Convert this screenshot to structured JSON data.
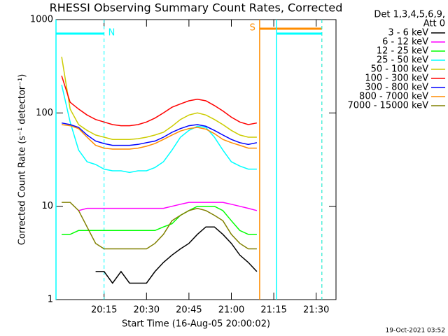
{
  "chart_data": {
    "type": "line",
    "title": "RHESSI Observing Summary Count Rates, Corrected",
    "xlabel": "Start Time (16-Aug-05 20:00:02)",
    "ylabel": "Corrected Count Rate (s⁻¹ detector⁻¹)",
    "footer": "19-Oct-2021 03:52",
    "legend_title": [
      "Det 1,3,4,5,6,9,",
      "Att 0"
    ],
    "legend": "right",
    "log_y": true,
    "xlim": [
      "19:58",
      "21:37"
    ],
    "xticks": [
      "20:15",
      "20:30",
      "20:45",
      "21:00",
      "21:15",
      "21:30"
    ],
    "ylim": [
      1,
      1000
    ],
    "yticks": [
      1,
      10,
      100,
      1000
    ],
    "x": [
      "20:00",
      "20:03",
      "20:06",
      "20:09",
      "20:12",
      "20:15",
      "20:18",
      "20:21",
      "20:24",
      "20:27",
      "20:30",
      "20:33",
      "20:36",
      "20:39",
      "20:42",
      "20:45",
      "20:48",
      "20:51",
      "20:54",
      "20:57",
      "21:00",
      "21:03",
      "21:06",
      "21:09"
    ],
    "series": [
      {
        "name": "3 - 6 keV",
        "color": "#000000",
        "values": [
          null,
          null,
          null,
          null,
          2,
          2,
          1.5,
          2,
          1.5,
          1.5,
          1.5,
          2,
          2.5,
          3,
          3.5,
          4,
          5,
          6,
          6,
          5,
          4,
          3,
          2.5,
          2
        ]
      },
      {
        "name": "6 - 12 keV",
        "color": "#ff00ff",
        "values": [
          null,
          null,
          9,
          9.5,
          9.5,
          9.5,
          9.5,
          9.5,
          9.5,
          9.5,
          9.5,
          9.5,
          9.5,
          10,
          10.5,
          11,
          11,
          11,
          11,
          11,
          10.5,
          10,
          9.5,
          9
        ]
      },
      {
        "name": "12 - 25 keV",
        "color": "#00ff00",
        "values": [
          5,
          5,
          5.5,
          5.5,
          5.5,
          5.5,
          5.5,
          5.5,
          5.5,
          5.5,
          5.5,
          5.5,
          6,
          6.5,
          8,
          9,
          10,
          10,
          10,
          9,
          7,
          5.5,
          5,
          5
        ]
      },
      {
        "name": "25 - 50 keV",
        "color": "#00ffff",
        "values": [
          200,
          80,
          40,
          30,
          28,
          25,
          24,
          24,
          23,
          24,
          24,
          26,
          30,
          40,
          55,
          65,
          72,
          70,
          55,
          40,
          30,
          27,
          25,
          25
        ]
      },
      {
        "name": "50 - 100 keV",
        "color": "#cccc00",
        "values": [
          400,
          110,
          75,
          65,
          58,
          55,
          52,
          52,
          52,
          53,
          55,
          58,
          62,
          72,
          85,
          95,
          100,
          95,
          85,
          75,
          65,
          58,
          55,
          55
        ]
      },
      {
        "name": "100 - 300 keV",
        "color": "#ff0000",
        "values": [
          250,
          130,
          110,
          95,
          85,
          80,
          75,
          73,
          73,
          75,
          80,
          88,
          100,
          115,
          125,
          135,
          140,
          135,
          120,
          105,
          90,
          80,
          75,
          78
        ]
      },
      {
        "name": "300 - 800 keV",
        "color": "#0000ff",
        "values": [
          78,
          75,
          70,
          58,
          50,
          47,
          45,
          45,
          45,
          46,
          48,
          50,
          55,
          62,
          68,
          73,
          75,
          72,
          65,
          58,
          52,
          48,
          46,
          48
        ]
      },
      {
        "name": "800 - 7000 keV",
        "color": "#ff8c00",
        "values": [
          75,
          73,
          68,
          55,
          45,
          42,
          41,
          41,
          41,
          42,
          44,
          47,
          52,
          58,
          64,
          68,
          70,
          67,
          60,
          52,
          48,
          45,
          42,
          42
        ]
      },
      {
        "name": "7000 - 15000 keV",
        "color": "#808000",
        "values": [
          11,
          11,
          9,
          6,
          4,
          3.5,
          3.5,
          3.5,
          3.5,
          3.5,
          3.5,
          4,
          5,
          7,
          8,
          9,
          9.5,
          9,
          8,
          7,
          5,
          4,
          3.5,
          3.5
        ]
      }
    ],
    "intervals": [
      {
        "label": "N",
        "start": "19:58",
        "end": "20:15",
        "color": "#00ffff"
      },
      {
        "label": "S",
        "start": "21:10",
        "end": "21:32",
        "color": "#ff8c00"
      },
      {
        "start": "21:16",
        "end": "21:32",
        "color": "#00ffff"
      }
    ]
  }
}
